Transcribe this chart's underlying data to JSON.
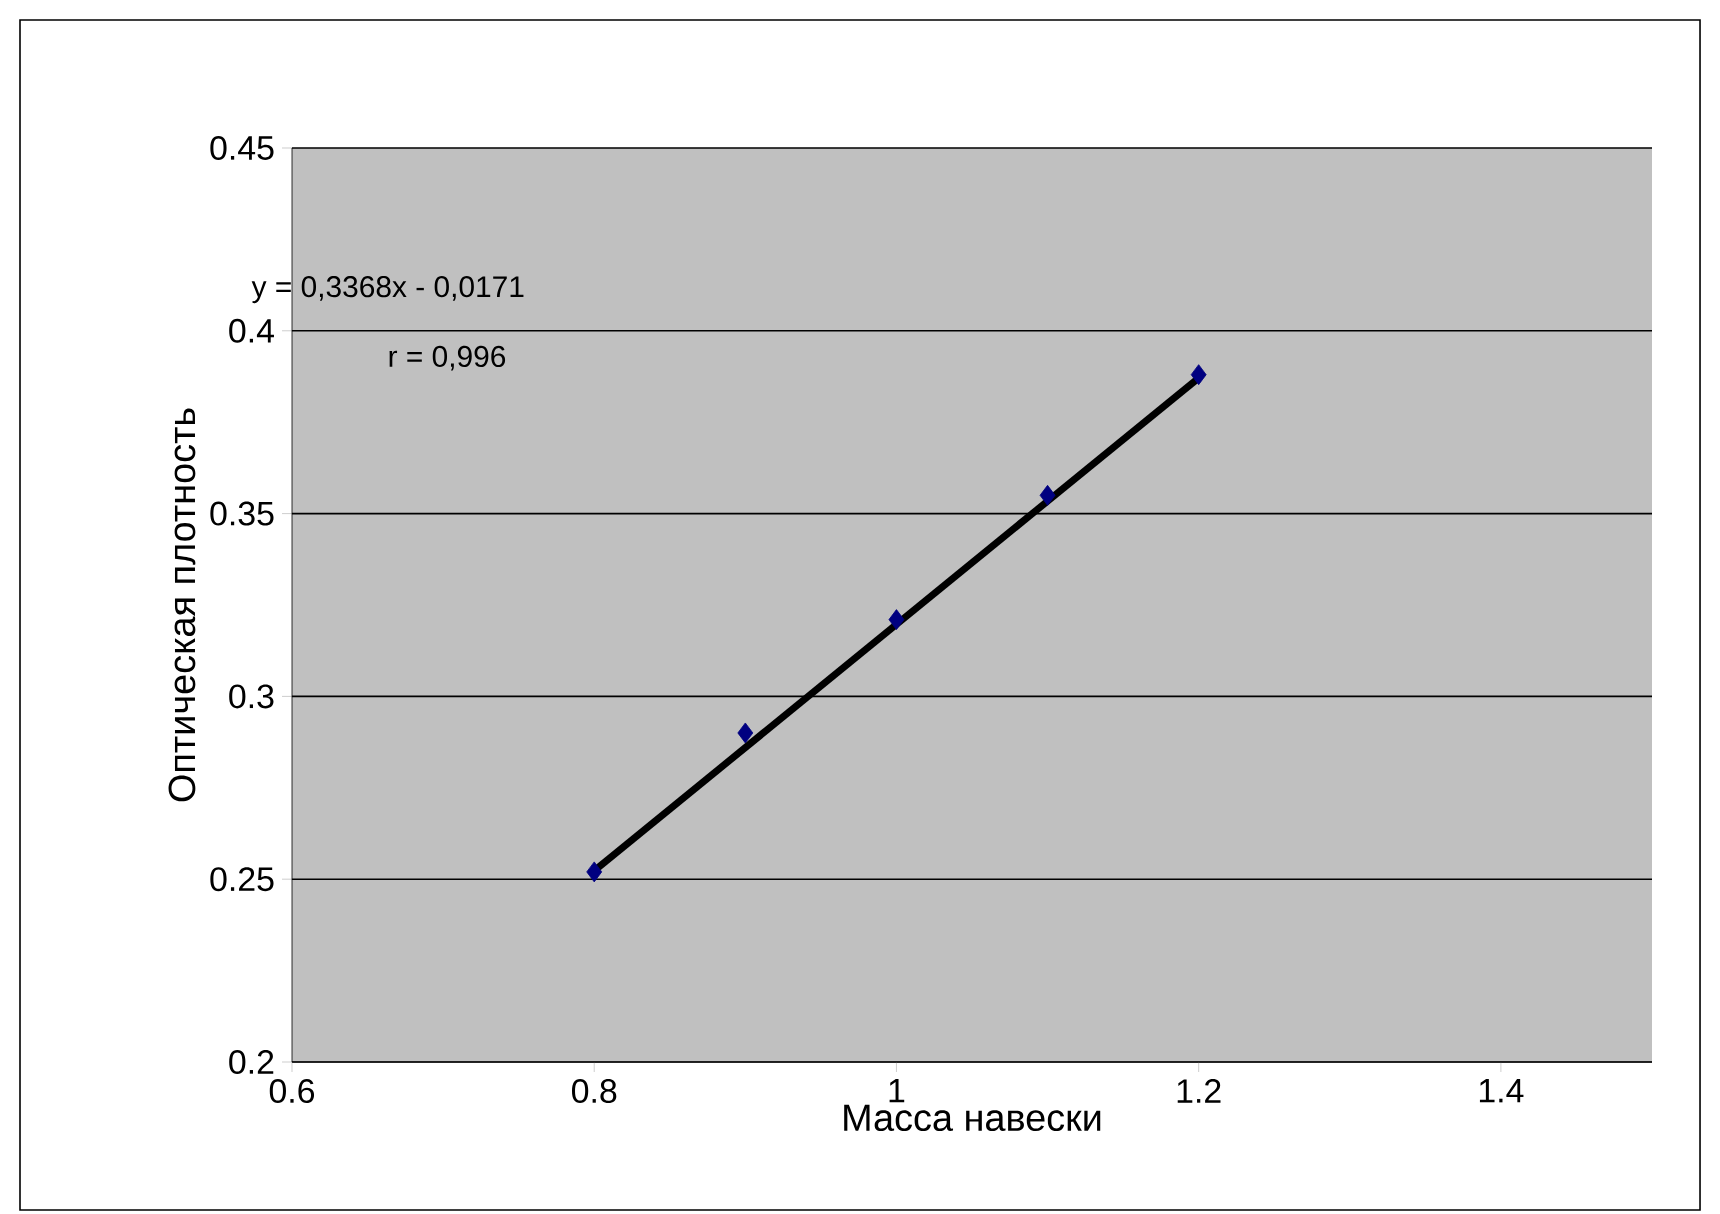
{
  "chart_data": {
    "type": "scatter",
    "xlabel": "Масса навески",
    "ylabel": "Оптическая плотность",
    "x": [
      0.8,
      0.9,
      1.0,
      1.1,
      1.2
    ],
    "series": [
      {
        "color": "#000080",
        "marker": "diamond",
        "values": [
          0.252,
          0.29,
          0.321,
          0.355,
          0.388
        ]
      },
      {
        "type": "line",
        "marker": "none",
        "color": "#000000",
        "x": [
          0.8,
          1.2
        ],
        "values": [
          0.2523,
          0.3871
        ]
      }
    ],
    "xlim": [
      0.6,
      1.5
    ],
    "xticks": [
      0.6,
      0.8,
      1,
      1.2,
      1.4
    ],
    "ylim": [
      0.2,
      0.45
    ],
    "yticks": [
      0.2,
      0.25,
      0.3,
      0.35,
      0.4,
      0.45
    ],
    "grid": "y",
    "annotations": [
      "y = 0,3368x - 0,0171",
      "r = 0,996"
    ]
  }
}
